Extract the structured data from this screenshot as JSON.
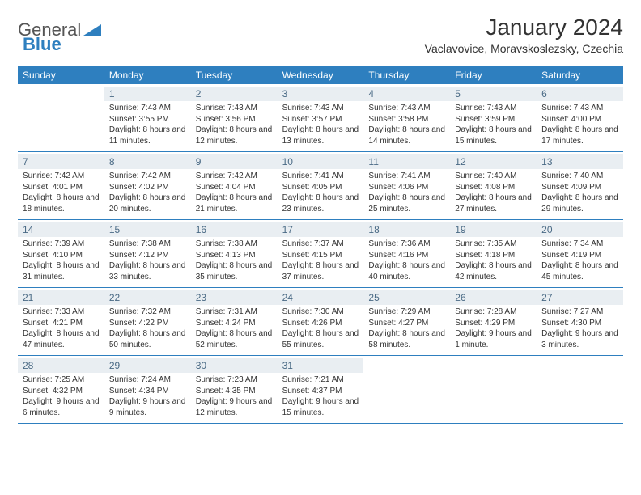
{
  "logo": {
    "text1": "General",
    "text2": "Blue"
  },
  "title": "January 2024",
  "subtitle": "Vaclavovice, Moravskoslezsky, Czechia",
  "dayHeaders": [
    "Sunday",
    "Monday",
    "Tuesday",
    "Wednesday",
    "Thursday",
    "Friday",
    "Saturday"
  ],
  "colors": {
    "headerBg": "#2e7fbf",
    "dayNumBg": "#e9eef2",
    "dayNumText": "#4a6a85",
    "border": "#2e7fbf"
  },
  "weeks": [
    [
      {
        "empty": true
      },
      {
        "num": "1",
        "sunrise": "Sunrise: 7:43 AM",
        "sunset": "Sunset: 3:55 PM",
        "daylight": "Daylight: 8 hours and 11 minutes."
      },
      {
        "num": "2",
        "sunrise": "Sunrise: 7:43 AM",
        "sunset": "Sunset: 3:56 PM",
        "daylight": "Daylight: 8 hours and 12 minutes."
      },
      {
        "num": "3",
        "sunrise": "Sunrise: 7:43 AM",
        "sunset": "Sunset: 3:57 PM",
        "daylight": "Daylight: 8 hours and 13 minutes."
      },
      {
        "num": "4",
        "sunrise": "Sunrise: 7:43 AM",
        "sunset": "Sunset: 3:58 PM",
        "daylight": "Daylight: 8 hours and 14 minutes."
      },
      {
        "num": "5",
        "sunrise": "Sunrise: 7:43 AM",
        "sunset": "Sunset: 3:59 PM",
        "daylight": "Daylight: 8 hours and 15 minutes."
      },
      {
        "num": "6",
        "sunrise": "Sunrise: 7:43 AM",
        "sunset": "Sunset: 4:00 PM",
        "daylight": "Daylight: 8 hours and 17 minutes."
      }
    ],
    [
      {
        "num": "7",
        "sunrise": "Sunrise: 7:42 AM",
        "sunset": "Sunset: 4:01 PM",
        "daylight": "Daylight: 8 hours and 18 minutes."
      },
      {
        "num": "8",
        "sunrise": "Sunrise: 7:42 AM",
        "sunset": "Sunset: 4:02 PM",
        "daylight": "Daylight: 8 hours and 20 minutes."
      },
      {
        "num": "9",
        "sunrise": "Sunrise: 7:42 AM",
        "sunset": "Sunset: 4:04 PM",
        "daylight": "Daylight: 8 hours and 21 minutes."
      },
      {
        "num": "10",
        "sunrise": "Sunrise: 7:41 AM",
        "sunset": "Sunset: 4:05 PM",
        "daylight": "Daylight: 8 hours and 23 minutes."
      },
      {
        "num": "11",
        "sunrise": "Sunrise: 7:41 AM",
        "sunset": "Sunset: 4:06 PM",
        "daylight": "Daylight: 8 hours and 25 minutes."
      },
      {
        "num": "12",
        "sunrise": "Sunrise: 7:40 AM",
        "sunset": "Sunset: 4:08 PM",
        "daylight": "Daylight: 8 hours and 27 minutes."
      },
      {
        "num": "13",
        "sunrise": "Sunrise: 7:40 AM",
        "sunset": "Sunset: 4:09 PM",
        "daylight": "Daylight: 8 hours and 29 minutes."
      }
    ],
    [
      {
        "num": "14",
        "sunrise": "Sunrise: 7:39 AM",
        "sunset": "Sunset: 4:10 PM",
        "daylight": "Daylight: 8 hours and 31 minutes."
      },
      {
        "num": "15",
        "sunrise": "Sunrise: 7:38 AM",
        "sunset": "Sunset: 4:12 PM",
        "daylight": "Daylight: 8 hours and 33 minutes."
      },
      {
        "num": "16",
        "sunrise": "Sunrise: 7:38 AM",
        "sunset": "Sunset: 4:13 PM",
        "daylight": "Daylight: 8 hours and 35 minutes."
      },
      {
        "num": "17",
        "sunrise": "Sunrise: 7:37 AM",
        "sunset": "Sunset: 4:15 PM",
        "daylight": "Daylight: 8 hours and 37 minutes."
      },
      {
        "num": "18",
        "sunrise": "Sunrise: 7:36 AM",
        "sunset": "Sunset: 4:16 PM",
        "daylight": "Daylight: 8 hours and 40 minutes."
      },
      {
        "num": "19",
        "sunrise": "Sunrise: 7:35 AM",
        "sunset": "Sunset: 4:18 PM",
        "daylight": "Daylight: 8 hours and 42 minutes."
      },
      {
        "num": "20",
        "sunrise": "Sunrise: 7:34 AM",
        "sunset": "Sunset: 4:19 PM",
        "daylight": "Daylight: 8 hours and 45 minutes."
      }
    ],
    [
      {
        "num": "21",
        "sunrise": "Sunrise: 7:33 AM",
        "sunset": "Sunset: 4:21 PM",
        "daylight": "Daylight: 8 hours and 47 minutes."
      },
      {
        "num": "22",
        "sunrise": "Sunrise: 7:32 AM",
        "sunset": "Sunset: 4:22 PM",
        "daylight": "Daylight: 8 hours and 50 minutes."
      },
      {
        "num": "23",
        "sunrise": "Sunrise: 7:31 AM",
        "sunset": "Sunset: 4:24 PM",
        "daylight": "Daylight: 8 hours and 52 minutes."
      },
      {
        "num": "24",
        "sunrise": "Sunrise: 7:30 AM",
        "sunset": "Sunset: 4:26 PM",
        "daylight": "Daylight: 8 hours and 55 minutes."
      },
      {
        "num": "25",
        "sunrise": "Sunrise: 7:29 AM",
        "sunset": "Sunset: 4:27 PM",
        "daylight": "Daylight: 8 hours and 58 minutes."
      },
      {
        "num": "26",
        "sunrise": "Sunrise: 7:28 AM",
        "sunset": "Sunset: 4:29 PM",
        "daylight": "Daylight: 9 hours and 1 minute."
      },
      {
        "num": "27",
        "sunrise": "Sunrise: 7:27 AM",
        "sunset": "Sunset: 4:30 PM",
        "daylight": "Daylight: 9 hours and 3 minutes."
      }
    ],
    [
      {
        "num": "28",
        "sunrise": "Sunrise: 7:25 AM",
        "sunset": "Sunset: 4:32 PM",
        "daylight": "Daylight: 9 hours and 6 minutes."
      },
      {
        "num": "29",
        "sunrise": "Sunrise: 7:24 AM",
        "sunset": "Sunset: 4:34 PM",
        "daylight": "Daylight: 9 hours and 9 minutes."
      },
      {
        "num": "30",
        "sunrise": "Sunrise: 7:23 AM",
        "sunset": "Sunset: 4:35 PM",
        "daylight": "Daylight: 9 hours and 12 minutes."
      },
      {
        "num": "31",
        "sunrise": "Sunrise: 7:21 AM",
        "sunset": "Sunset: 4:37 PM",
        "daylight": "Daylight: 9 hours and 15 minutes."
      },
      {
        "empty": true
      },
      {
        "empty": true
      },
      {
        "empty": true
      }
    ]
  ]
}
